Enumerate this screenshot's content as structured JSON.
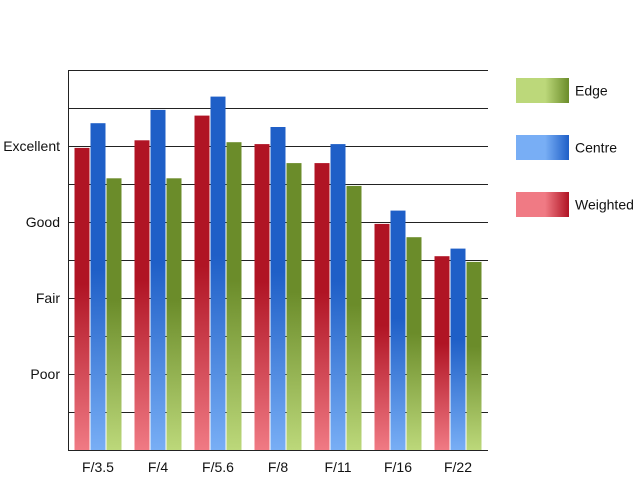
{
  "chart_data": {
    "type": "bar",
    "title": "",
    "xlabel": "",
    "ylabel": "",
    "categories": [
      "F/3.5",
      "F/4",
      "F/5.6",
      "F/8",
      "F/11",
      "F/16",
      "F/22"
    ],
    "series": [
      {
        "name": "Weighted",
        "values": [
          7.95,
          8.15,
          8.8,
          8.05,
          7.55,
          5.95,
          5.1
        ],
        "color_light": "#f07a84",
        "color_dark": "#b01424"
      },
      {
        "name": "Centre",
        "values": [
          8.6,
          8.95,
          9.3,
          8.5,
          8.05,
          6.3,
          5.3
        ],
        "color_light": "#78aef5",
        "color_dark": "#1f5fc7"
      },
      {
        "name": "Edge",
        "values": [
          7.15,
          7.15,
          8.1,
          7.55,
          6.95,
          5.6,
          4.95
        ],
        "color_light": "#bcd87a",
        "color_dark": "#6b8c2a"
      }
    ],
    "legend_order": [
      "Edge",
      "Centre",
      "Weighted"
    ],
    "ylim": [
      0,
      10
    ],
    "yticks": [
      {
        "value": 2,
        "label": "Poor"
      },
      {
        "value": 4,
        "label": "Fair"
      },
      {
        "value": 6,
        "label": "Good"
      },
      {
        "value": 8,
        "label": "Excellent"
      }
    ],
    "grid": true,
    "grid_step": 1,
    "legend_position": "right"
  }
}
